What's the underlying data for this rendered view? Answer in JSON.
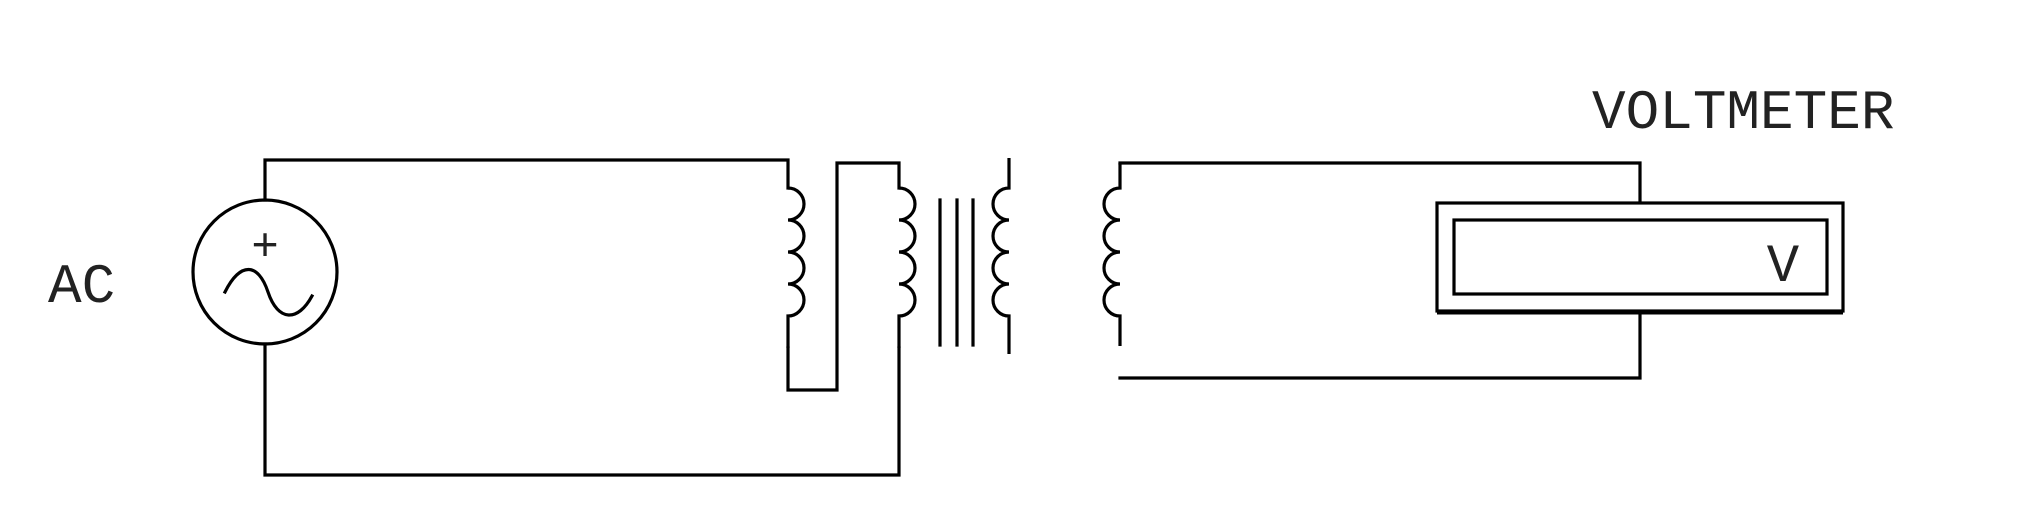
{
  "labels": {
    "source": "AC",
    "meter_title": "VOLTMETER",
    "meter_symbol": "V"
  },
  "source_polarity": "+",
  "colors": {
    "line": "#000000",
    "text": "#222222",
    "background": "#ffffff"
  }
}
